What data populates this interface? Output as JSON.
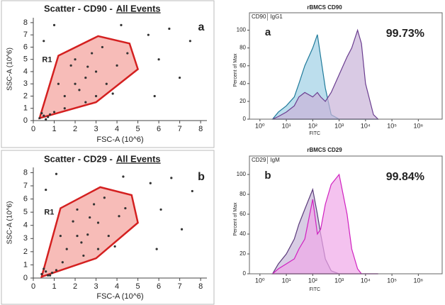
{
  "chart_data": [
    {
      "type": "scatter",
      "title": "Scatter - CD90 -",
      "title_link": "All Events",
      "panel_label": "a",
      "region_label": "R1",
      "xlabel": "FSC-A (10^6)",
      "ylabel": "SSC-A (10^6)",
      "xlim": [
        0,
        8.3
      ],
      "ylim": [
        0,
        8.4
      ],
      "xticks": [
        0,
        1,
        2,
        3,
        4,
        5,
        6,
        7,
        8
      ],
      "yticks": [
        0,
        1,
        2,
        3,
        4,
        5,
        6,
        7,
        8
      ],
      "color": "#333333",
      "gate_color": "#d42020",
      "gate_fill": "#f4a6a0",
      "gate": {
        "x": [
          0.3,
          1.2,
          3.1,
          4.6,
          5.0,
          3.0
        ],
        "y": [
          0.2,
          5.3,
          6.9,
          6.3,
          4.2,
          1.5
        ]
      },
      "x": [
        0.3,
        0.5,
        0.7,
        0.4,
        0.8,
        0.6,
        1.0,
        1.5,
        2.0,
        2.5,
        3.0,
        2.2,
        1.8,
        2.8,
        3.5,
        4.0,
        3.3,
        2.5,
        1.5,
        4.5,
        3.8,
        2.0,
        5.5,
        6.5,
        6.0,
        7.0,
        5.8,
        0.5,
        1.0,
        7.5,
        4.2,
        3.0,
        2.6,
        1.2
      ],
      "values": [
        0.2,
        0.4,
        0.3,
        0.6,
        0.5,
        0.1,
        0.7,
        2.0,
        3.0,
        3.5,
        4.0,
        2.5,
        4.5,
        5.5,
        3.0,
        4.5,
        6.0,
        1.5,
        1.0,
        5.5,
        2.2,
        5.0,
        7.0,
        7.5,
        5.0,
        3.5,
        2.0,
        6.5,
        7.8,
        6.5,
        7.8,
        2.0,
        4.4,
        3.0
      ]
    },
    {
      "type": "histogram",
      "title": "rBMCS CD90",
      "panel_label": "a",
      "annotation": "99.73%",
      "xlabel": "FITC",
      "ylabel": "Percent of Max",
      "xscale": "log",
      "xlim": [
        0.4,
        8000000
      ],
      "ylim": [
        0,
        110
      ],
      "xticks": [
        {
          "value": 1,
          "label": "10⁰"
        },
        {
          "value": 10,
          "label": "10¹"
        },
        {
          "value": 100,
          "label": "10²"
        },
        {
          "value": 1000,
          "label": "10³"
        },
        {
          "value": 10000,
          "label": "10⁴"
        },
        {
          "value": 100000,
          "label": "10⁵"
        },
        {
          "value": 1000000,
          "label": "10⁶"
        }
      ],
      "yticks": [
        0,
        20,
        40,
        60,
        80,
        100
      ],
      "x": [
        3,
        5,
        10,
        20,
        30,
        50,
        100,
        150,
        200,
        300,
        500,
        1000,
        2000,
        3000,
        5000,
        7000,
        10000,
        20000,
        30000
      ],
      "series": [
        {
          "name": "CD90",
          "color": "#6a3d8f",
          "fill": "#c9b3d9",
          "values": [
            0,
            3,
            8,
            15,
            25,
            30,
            25,
            30,
            25,
            20,
            30,
            50,
            70,
            80,
            100,
            85,
            40,
            5,
            0
          ]
        },
        {
          "name": "IgG1",
          "color": "#1f7a9a",
          "fill": "#9fd0e6",
          "values": [
            0,
            8,
            15,
            25,
            40,
            60,
            80,
            95,
            70,
            35,
            5,
            0,
            0,
            0,
            0,
            0,
            0,
            0,
            0
          ]
        }
      ]
    },
    {
      "type": "scatter",
      "title": "Scatter - CD29 -",
      "title_link": "All Events",
      "panel_label": "b",
      "region_label": "R1",
      "xlabel": "FSC-A (10^6)",
      "ylabel": "SSC-A (10^6)",
      "xlim": [
        0,
        8.3
      ],
      "ylim": [
        0,
        8.4
      ],
      "xticks": [
        0,
        1,
        2,
        3,
        4,
        5,
        6,
        7,
        8
      ],
      "yticks": [
        0,
        1,
        2,
        3,
        4,
        5,
        6,
        7,
        8
      ],
      "color": "#333333",
      "gate_color": "#d42020",
      "gate_fill": "#f4a6a0",
      "gate": {
        "x": [
          0.4,
          1.3,
          3.2,
          4.7,
          5.0,
          3.0
        ],
        "y": [
          0.1,
          5.3,
          6.9,
          6.3,
          4.2,
          1.5
        ]
      },
      "x": [
        0.4,
        0.6,
        0.8,
        0.5,
        0.9,
        0.7,
        1.1,
        1.6,
        2.1,
        2.6,
        3.1,
        2.3,
        1.9,
        2.9,
        3.6,
        4.1,
        3.4,
        2.4,
        1.4,
        4.4,
        3.9,
        2.1,
        5.6,
        6.6,
        6.1,
        7.1,
        5.9,
        0.6,
        1.1,
        7.6,
        4.3,
        3.1,
        2.7,
        1.3
      ],
      "values": [
        0.3,
        0.5,
        0.2,
        0.7,
        0.4,
        0.2,
        0.6,
        2.2,
        3.2,
        3.3,
        4.2,
        2.7,
        4.3,
        5.6,
        3.2,
        4.7,
        6.1,
        1.7,
        1.2,
        5.3,
        2.4,
        5.2,
        7.2,
        7.6,
        5.2,
        3.7,
        2.2,
        6.7,
        7.9,
        6.6,
        7.7,
        2.2,
        4.6,
        3.2
      ]
    },
    {
      "type": "histogram",
      "title": "rBMCS CD29",
      "panel_label": "b",
      "annotation": "99.84%",
      "xlabel": "FITC",
      "ylabel": "Percent of Max",
      "xscale": "log",
      "xlim": [
        0.4,
        8000000
      ],
      "ylim": [
        0,
        110
      ],
      "xticks": [
        {
          "value": 1,
          "label": "10⁰"
        },
        {
          "value": 10,
          "label": "10¹"
        },
        {
          "value": 100,
          "label": "10²"
        },
        {
          "value": 1000,
          "label": "10³"
        },
        {
          "value": 10000,
          "label": "10⁴"
        },
        {
          "value": 100000,
          "label": "10⁵"
        },
        {
          "value": 1000000,
          "label": "10⁶"
        }
      ],
      "yticks": [
        0,
        20,
        40,
        60,
        80,
        100
      ],
      "x": [
        3,
        5,
        10,
        20,
        30,
        50,
        100,
        150,
        200,
        300,
        500,
        1000,
        2000,
        3000,
        5000,
        7000,
        10000,
        20000,
        30000
      ],
      "series": [
        {
          "name": "CD29",
          "color": "#d020c0",
          "fill": "#f0a8e8",
          "values": [
            0,
            5,
            10,
            15,
            25,
            35,
            75,
            40,
            45,
            70,
            90,
            100,
            60,
            25,
            5,
            0,
            0,
            0,
            0
          ]
        },
        {
          "name": "IgM",
          "color": "#5a3a7a",
          "fill": "#c8b8d8",
          "values": [
            0,
            10,
            20,
            35,
            50,
            65,
            85,
            60,
            40,
            15,
            3,
            0,
            0,
            0,
            0,
            0,
            0,
            0,
            0
          ]
        }
      ]
    }
  ]
}
